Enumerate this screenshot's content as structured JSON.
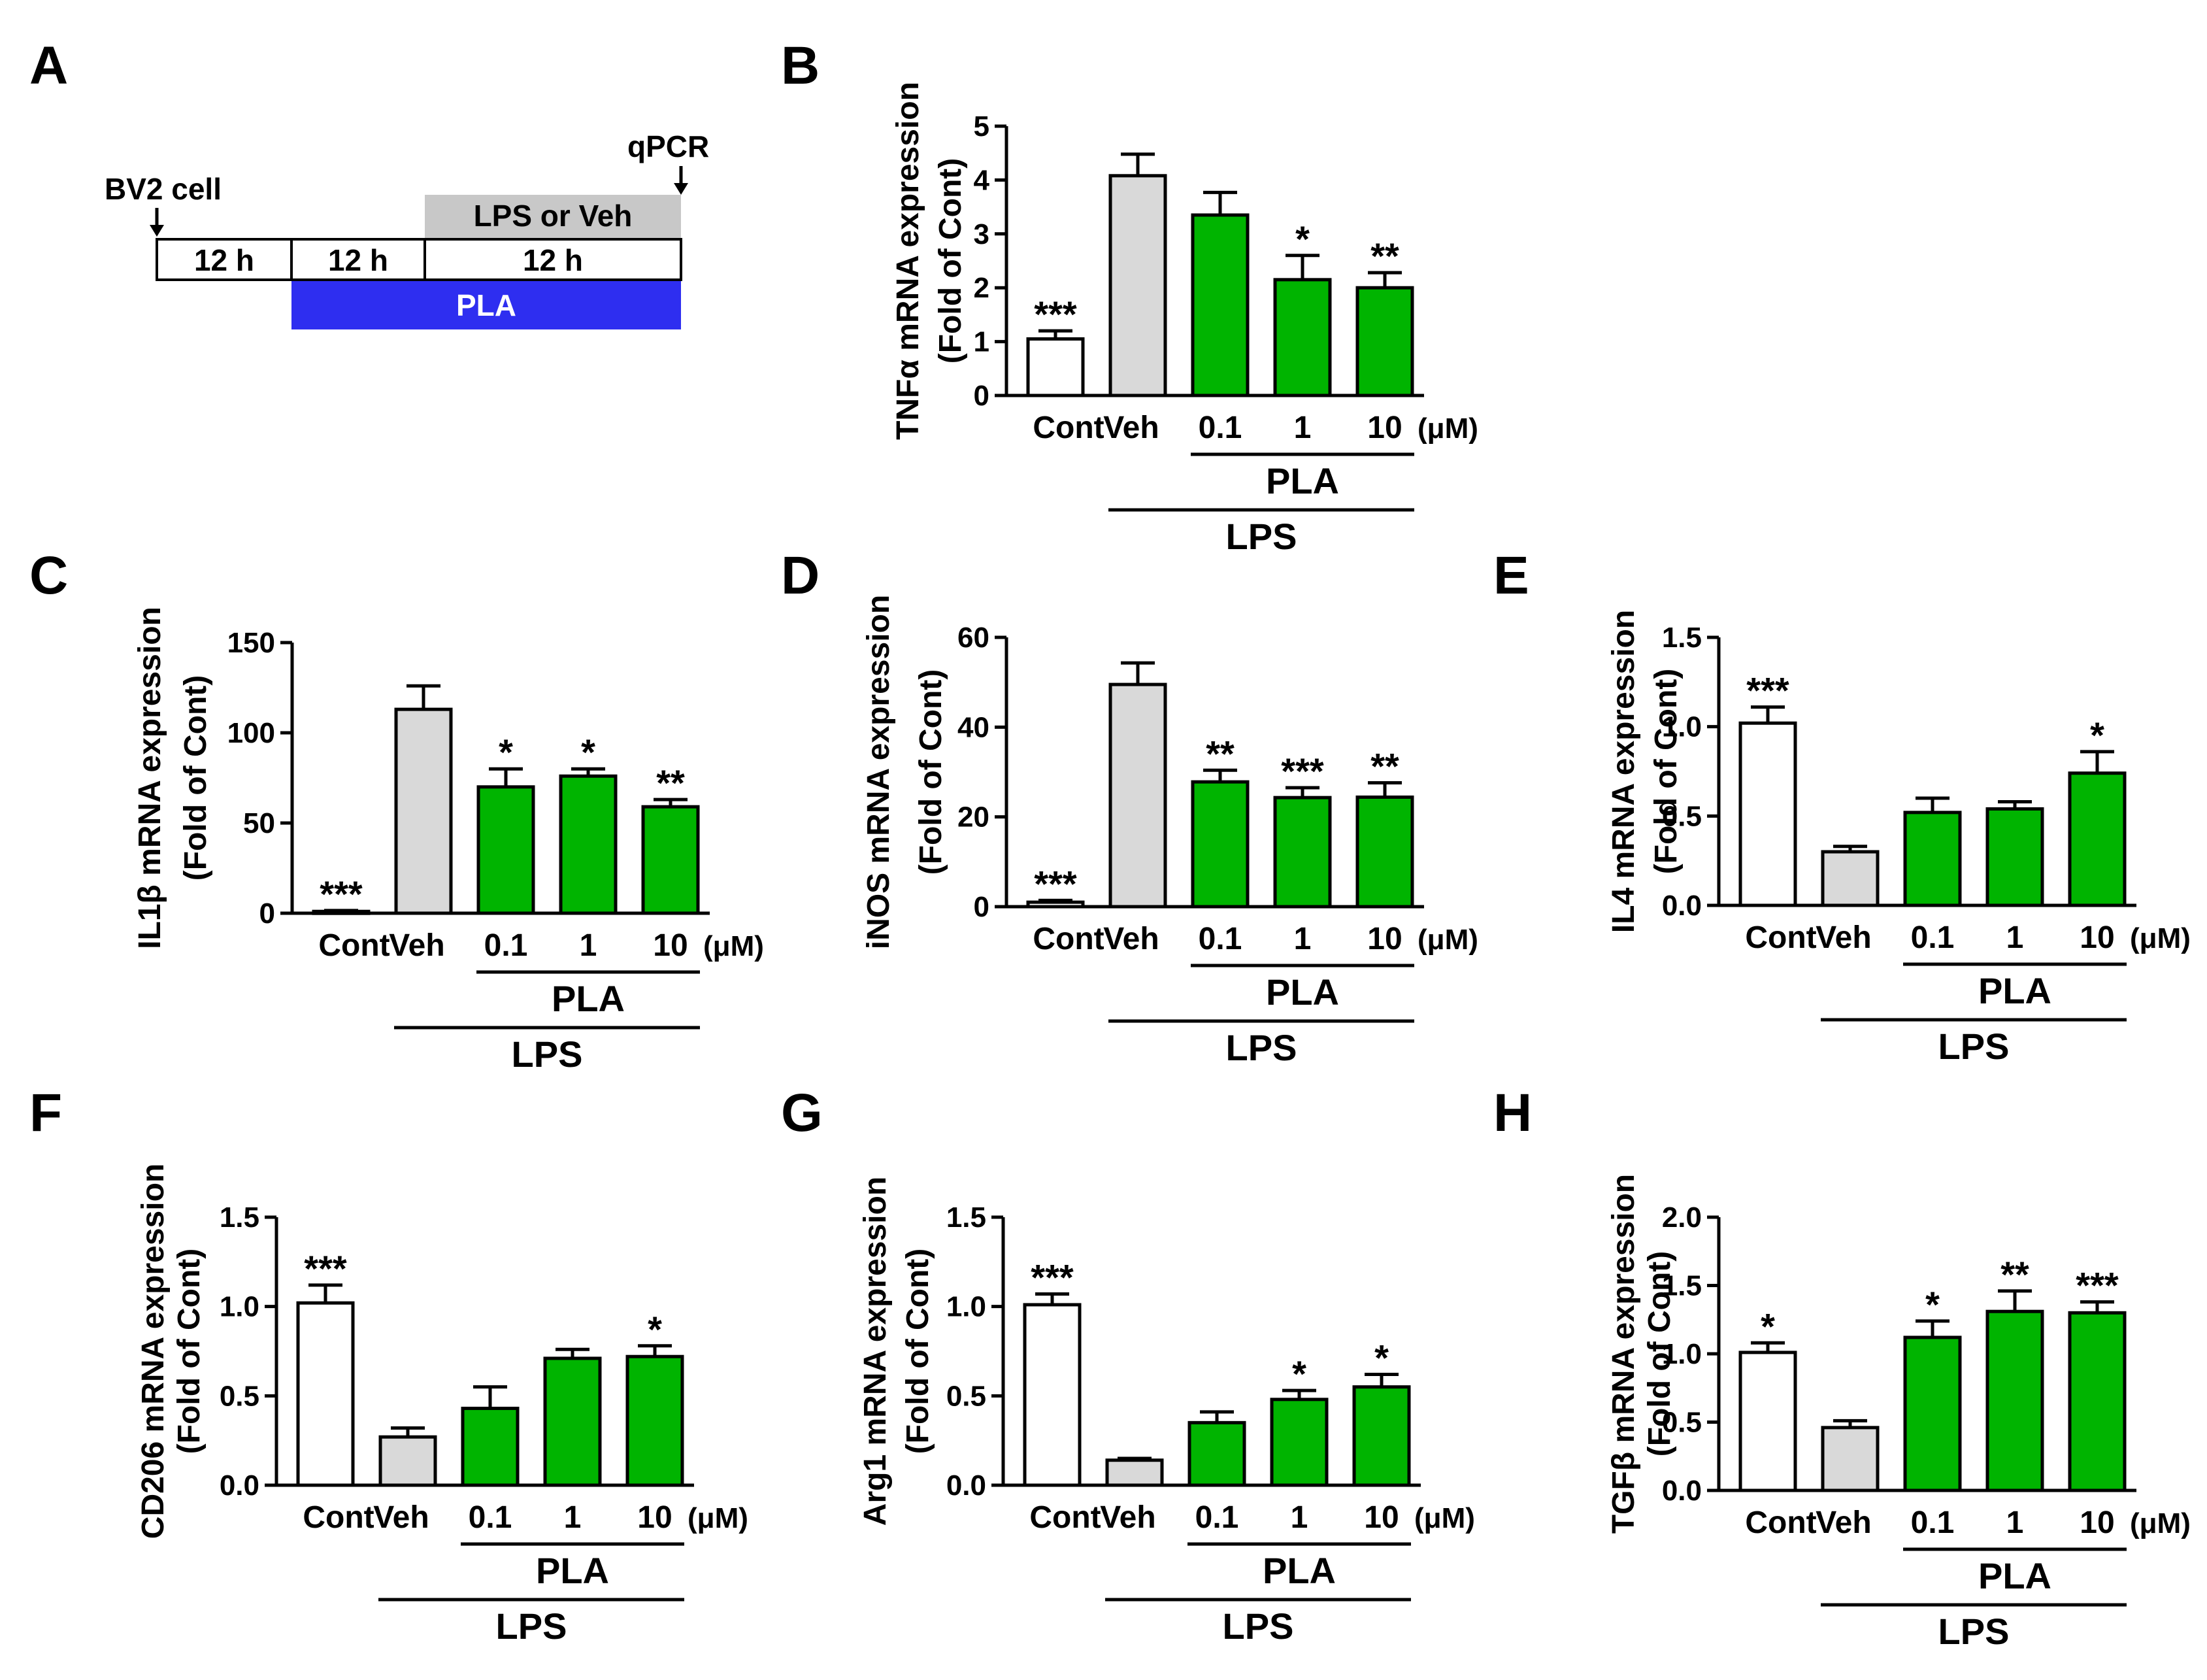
{
  "colors": {
    "cont": "#ffffff",
    "veh": "#d9d9d9",
    "pla": "#00b400",
    "pla_bar": "#2e2ef0",
    "lps_bar": "#c8c8c8",
    "axis": "#000000"
  },
  "schedule": {
    "letter": "A",
    "bv2_label": "BV2 cell",
    "qpcr_label": "qPCR",
    "lps_veh_label": "LPS or Veh",
    "pla_label": "PLA",
    "intervals": [
      "12 h",
      "12 h",
      "12 h"
    ]
  },
  "common": {
    "unit": "(μM)",
    "pla_group": "PLA",
    "lps_group": "LPS"
  },
  "chart_data": [
    {
      "letter": "B",
      "type": "bar",
      "ylabel": "TNFα mRNA expression",
      "ylabel2": "(Fold of Cont)",
      "categories": [
        "Cont",
        "Veh",
        "0.1",
        "1",
        "10"
      ],
      "values": [
        1.05,
        4.08,
        3.35,
        2.15,
        2.0
      ],
      "errors": [
        0.15,
        0.4,
        0.42,
        0.45,
        0.28
      ],
      "sig": [
        "***",
        "",
        "",
        "*",
        "**"
      ],
      "ylim": [
        0,
        5
      ],
      "ticks": [
        "0",
        "1",
        "2",
        "3",
        "4",
        "5"
      ],
      "tick_values": [
        0,
        1,
        2,
        3,
        4,
        5
      ]
    },
    {
      "letter": "C",
      "type": "bar",
      "ylabel": "IL1β mRNA expression",
      "ylabel2": "(Fold of Cont)",
      "categories": [
        "Cont",
        "Veh",
        "0.1",
        "1",
        "10"
      ],
      "values": [
        1,
        113,
        70,
        76,
        59
      ],
      "errors": [
        0.5,
        13,
        10,
        4,
        4
      ],
      "sig": [
        "***",
        "",
        "*",
        "*",
        "**"
      ],
      "ylim": [
        0,
        150
      ],
      "ticks": [
        "0",
        "50",
        "100",
        "150"
      ],
      "tick_values": [
        0,
        50,
        100,
        150
      ]
    },
    {
      "letter": "D",
      "type": "bar",
      "ylabel": "iNOS mRNA expression",
      "ylabel2": "(Fold of Cont)",
      "categories": [
        "Cont",
        "Veh",
        "0.1",
        "1",
        "10"
      ],
      "values": [
        1,
        49.5,
        27.8,
        24.3,
        24.4
      ],
      "errors": [
        0.4,
        4.8,
        2.6,
        2.2,
        3.2
      ],
      "sig": [
        "***",
        "",
        "**",
        "***",
        "**"
      ],
      "ylim": [
        0,
        60
      ],
      "ticks": [
        "0",
        "20",
        "40",
        "60"
      ],
      "tick_values": [
        0,
        20,
        40,
        60
      ]
    },
    {
      "letter": "E",
      "type": "bar",
      "ylabel": "IL4 mRNA expression",
      "ylabel2": "(Fold of Cont)",
      "categories": [
        "Cont",
        "Veh",
        "0.1",
        "1",
        "10"
      ],
      "values": [
        1.02,
        0.3,
        0.52,
        0.54,
        0.74
      ],
      "errors": [
        0.09,
        0.03,
        0.08,
        0.04,
        0.12
      ],
      "sig": [
        "***",
        "",
        "",
        "",
        "*"
      ],
      "ylim": [
        0,
        1.5
      ],
      "ticks": [
        "0.0",
        "0.5",
        "1.0",
        "1.5"
      ],
      "tick_values": [
        0,
        0.5,
        1.0,
        1.5
      ]
    },
    {
      "letter": "F",
      "type": "bar",
      "ylabel": "CD206 mRNA expression",
      "ylabel2": "(Fold of Cont)",
      "categories": [
        "Cont",
        "Veh",
        "0.1",
        "1",
        "10"
      ],
      "values": [
        1.02,
        0.27,
        0.43,
        0.71,
        0.72
      ],
      "errors": [
        0.1,
        0.05,
        0.12,
        0.05,
        0.06
      ],
      "sig": [
        "***",
        "",
        "",
        "",
        "*"
      ],
      "ylim": [
        0,
        1.5
      ],
      "ticks": [
        "0.0",
        "0.5",
        "1.0",
        "1.5"
      ],
      "tick_values": [
        0,
        0.5,
        1.0,
        1.5
      ]
    },
    {
      "letter": "G",
      "type": "bar",
      "ylabel": "Arg1 mRNA expression",
      "ylabel2": "(Fold of Cont)",
      "categories": [
        "Cont",
        "Veh",
        "0.1",
        "1",
        "10"
      ],
      "values": [
        1.01,
        0.14,
        0.35,
        0.48,
        0.55
      ],
      "errors": [
        0.06,
        0.01,
        0.06,
        0.05,
        0.07
      ],
      "sig": [
        "***",
        "",
        "",
        "*",
        "*"
      ],
      "ylim": [
        0,
        1.5
      ],
      "ticks": [
        "0.0",
        "0.5",
        "1.0",
        "1.5"
      ],
      "tick_values": [
        0,
        0.5,
        1.0,
        1.5
      ]
    },
    {
      "letter": "H",
      "type": "bar",
      "ylabel": "TGFβ mRNA expression",
      "ylabel2": "(Fold of Cont)",
      "categories": [
        "Cont",
        "Veh",
        "0.1",
        "1",
        "10"
      ],
      "values": [
        1.01,
        0.46,
        1.12,
        1.31,
        1.3
      ],
      "errors": [
        0.07,
        0.05,
        0.12,
        0.15,
        0.08
      ],
      "sig": [
        "*",
        "",
        "*",
        "**",
        "***"
      ],
      "ylim": [
        0,
        2.0
      ],
      "ticks": [
        "0.0",
        "0.5",
        "1.0",
        "1.5",
        "2.0"
      ],
      "tick_values": [
        0,
        0.5,
        1.0,
        1.5,
        2.0
      ]
    }
  ]
}
